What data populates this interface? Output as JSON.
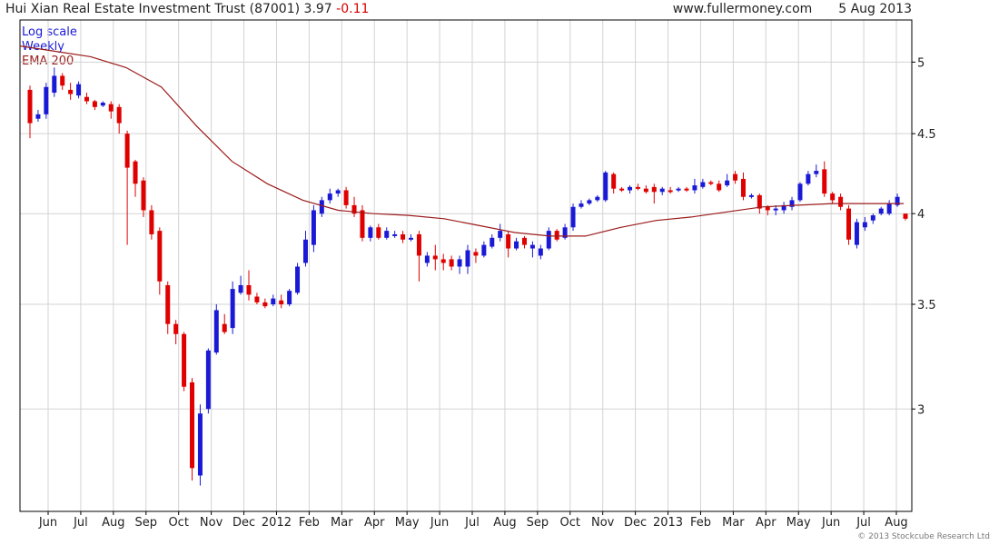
{
  "header": {
    "name": "Hui Xian Real Estate Investment Trust (87001)",
    "price": "3.97",
    "change": "-0.11",
    "source": "www.fullermoney.com",
    "date": "5 Aug 2013"
  },
  "legend": [
    "Log scale",
    "Weekly",
    "EMA 200"
  ],
  "copyright": "© 2013 Stockcube Research Ltd",
  "colors": {
    "up": "#1a1ad6",
    "down": "#e00000",
    "ema": "#9b1b1b",
    "grid": "#d3d3d3",
    "axis": "#000000"
  },
  "chart_data": {
    "type": "candlestick",
    "scale": "log",
    "grid": true,
    "y_ticks": [
      3,
      3.5,
      4,
      4.5,
      5
    ],
    "ylim": [
      2.58,
      5.32
    ],
    "x_ticks": [
      "Jun",
      "Jul",
      "Aug",
      "Sep",
      "Oct",
      "Nov",
      "Dec",
      "2012",
      "Feb",
      "Mar",
      "Apr",
      "May",
      "Jun",
      "Jul",
      "Aug",
      "Sep",
      "Oct",
      "Nov",
      "Dec",
      "2013",
      "Feb",
      "Mar",
      "Apr",
      "May",
      "Jun",
      "Jul",
      "Aug"
    ],
    "ema_200": [
      5.12,
      5.08,
      5.04,
      4.96,
      4.82,
      4.55,
      4.32,
      4.18,
      4.08,
      4.02,
      4.0,
      3.99,
      3.97,
      3.93,
      3.89,
      3.87,
      3.87,
      3.92,
      3.96,
      3.98,
      4.01,
      4.04,
      4.05,
      4.06,
      4.06,
      4.06
    ],
    "candles": [
      [
        4.8,
        4.57,
        4.83,
        4.47
      ],
      [
        4.6,
        4.63,
        4.66,
        4.58
      ],
      [
        4.63,
        4.82,
        4.85,
        4.6
      ],
      [
        4.78,
        4.9,
        4.96,
        4.75
      ],
      [
        4.9,
        4.83,
        4.92,
        4.8
      ],
      [
        4.8,
        4.77,
        4.85,
        4.73
      ],
      [
        4.76,
        4.84,
        4.86,
        4.74
      ],
      [
        4.75,
        4.72,
        4.78,
        4.7
      ],
      [
        4.72,
        4.68,
        4.73,
        4.66
      ],
      [
        4.69,
        4.71,
        4.72,
        4.68
      ],
      [
        4.7,
        4.65,
        4.72,
        4.6
      ],
      [
        4.68,
        4.57,
        4.7,
        4.5
      ],
      [
        4.5,
        4.28,
        4.52,
        3.82
      ],
      [
        4.32,
        4.18,
        4.33,
        4.1
      ],
      [
        4.2,
        4.02,
        4.22,
        3.98
      ],
      [
        4.02,
        3.88,
        4.05,
        3.85
      ],
      [
        3.9,
        3.62,
        3.92,
        3.55
      ],
      [
        3.6,
        3.4,
        3.62,
        3.35
      ],
      [
        3.4,
        3.35,
        3.42,
        3.3
      ],
      [
        3.35,
        3.1,
        3.36,
        3.08
      ],
      [
        3.12,
        2.75,
        3.14,
        2.7
      ],
      [
        2.72,
        2.98,
        3.02,
        2.68
      ],
      [
        3.0,
        3.27,
        3.28,
        2.98
      ],
      [
        3.26,
        3.47,
        3.5,
        3.25
      ],
      [
        3.4,
        3.36,
        3.45,
        3.35
      ],
      [
        3.38,
        3.58,
        3.62,
        3.35
      ],
      [
        3.56,
        3.6,
        3.65,
        3.55
      ],
      [
        3.6,
        3.55,
        3.68,
        3.52
      ],
      [
        3.54,
        3.51,
        3.56,
        3.5
      ],
      [
        3.51,
        3.49,
        3.53,
        3.48
      ],
      [
        3.5,
        3.53,
        3.55,
        3.49
      ],
      [
        3.52,
        3.5,
        3.55,
        3.48
      ],
      [
        3.5,
        3.57,
        3.58,
        3.49
      ],
      [
        3.56,
        3.7,
        3.72,
        3.55
      ],
      [
        3.72,
        3.85,
        3.9,
        3.7
      ],
      [
        3.82,
        4.02,
        4.05,
        3.78
      ],
      [
        4.0,
        4.08,
        4.1,
        3.98
      ],
      [
        4.08,
        4.12,
        4.15,
        4.06
      ],
      [
        4.12,
        4.14,
        4.15,
        4.1
      ],
      [
        4.14,
        4.05,
        4.16,
        4.03
      ],
      [
        4.05,
        4.0,
        4.1,
        3.98
      ],
      [
        4.02,
        3.86,
        4.05,
        3.84
      ],
      [
        3.86,
        3.92,
        3.93,
        3.84
      ],
      [
        3.92,
        3.86,
        3.94,
        3.85
      ],
      [
        3.86,
        3.9,
        3.92,
        3.85
      ],
      [
        3.88,
        3.88,
        3.9,
        3.86
      ],
      [
        3.88,
        3.85,
        3.9,
        3.83
      ],
      [
        3.85,
        3.86,
        3.88,
        3.84
      ],
      [
        3.88,
        3.76,
        3.9,
        3.62
      ],
      [
        3.72,
        3.76,
        3.78,
        3.7
      ],
      [
        3.76,
        3.74,
        3.82,
        3.68
      ],
      [
        3.74,
        3.72,
        3.77,
        3.68
      ],
      [
        3.74,
        3.7,
        3.76,
        3.68
      ],
      [
        3.7,
        3.74,
        3.76,
        3.66
      ],
      [
        3.7,
        3.79,
        3.82,
        3.66
      ],
      [
        3.78,
        3.76,
        3.8,
        3.72
      ],
      [
        3.76,
        3.82,
        3.84,
        3.75
      ],
      [
        3.81,
        3.86,
        3.88,
        3.8
      ],
      [
        3.86,
        3.9,
        3.94,
        3.84
      ],
      [
        3.88,
        3.8,
        3.9,
        3.75
      ],
      [
        3.8,
        3.84,
        3.86,
        3.79
      ],
      [
        3.86,
        3.82,
        3.87,
        3.8
      ],
      [
        3.8,
        3.82,
        3.84,
        3.75
      ],
      [
        3.76,
        3.8,
        3.82,
        3.74
      ],
      [
        3.8,
        3.9,
        3.92,
        3.79
      ],
      [
        3.9,
        3.85,
        3.91,
        3.84
      ],
      [
        3.86,
        3.92,
        3.94,
        3.85
      ],
      [
        3.92,
        4.04,
        4.06,
        3.9
      ],
      [
        4.04,
        4.06,
        4.08,
        4.03
      ],
      [
        4.06,
        4.08,
        4.09,
        4.05
      ],
      [
        4.08,
        4.1,
        4.11,
        4.07
      ],
      [
        4.08,
        4.25,
        4.26,
        4.07
      ],
      [
        4.24,
        4.15,
        4.25,
        4.12
      ],
      [
        4.15,
        4.14,
        4.16,
        4.13
      ],
      [
        4.14,
        4.16,
        4.17,
        4.12
      ],
      [
        4.16,
        4.15,
        4.18,
        4.14
      ],
      [
        4.15,
        4.13,
        4.17,
        4.12
      ],
      [
        4.16,
        4.13,
        4.18,
        4.06
      ],
      [
        4.13,
        4.15,
        4.16,
        4.11
      ],
      [
        4.14,
        4.13,
        4.16,
        4.12
      ],
      [
        4.14,
        4.15,
        4.16,
        4.13
      ],
      [
        4.15,
        4.14,
        4.16,
        4.13
      ],
      [
        4.14,
        4.17,
        4.21,
        4.12
      ],
      [
        4.16,
        4.19,
        4.21,
        4.15
      ],
      [
        4.19,
        4.18,
        4.2,
        4.17
      ],
      [
        4.18,
        4.14,
        4.2,
        4.13
      ],
      [
        4.17,
        4.2,
        4.24,
        4.16
      ],
      [
        4.24,
        4.2,
        4.26,
        4.18
      ],
      [
        4.21,
        4.1,
        4.25,
        4.08
      ],
      [
        4.1,
        4.11,
        4.12,
        4.09
      ],
      [
        4.11,
        4.03,
        4.12,
        4.0
      ],
      [
        4.04,
        4.02,
        4.05,
        3.99
      ],
      [
        4.02,
        4.03,
        4.05,
        3.99
      ],
      [
        4.02,
        4.05,
        4.07,
        4.0
      ],
      [
        4.04,
        4.08,
        4.1,
        4.02
      ],
      [
        4.08,
        4.18,
        4.19,
        4.07
      ],
      [
        4.18,
        4.24,
        4.26,
        4.17
      ],
      [
        4.24,
        4.26,
        4.3,
        4.22
      ],
      [
        4.27,
        4.12,
        4.32,
        4.1
      ],
      [
        4.12,
        4.08,
        4.13,
        4.06
      ],
      [
        4.1,
        4.04,
        4.12,
        4.02
      ],
      [
        4.03,
        3.85,
        4.05,
        3.82
      ],
      [
        3.82,
        3.95,
        3.97,
        3.8
      ],
      [
        3.92,
        3.95,
        3.98,
        3.9
      ],
      [
        3.96,
        3.99,
        4.0,
        3.94
      ],
      [
        4.0,
        4.03,
        4.04,
        3.99
      ],
      [
        4.0,
        4.06,
        4.08,
        3.99
      ],
      [
        4.05,
        4.1,
        4.12,
        4.04
      ],
      [
        4.0,
        3.97,
        4.0,
        3.96
      ]
    ]
  }
}
